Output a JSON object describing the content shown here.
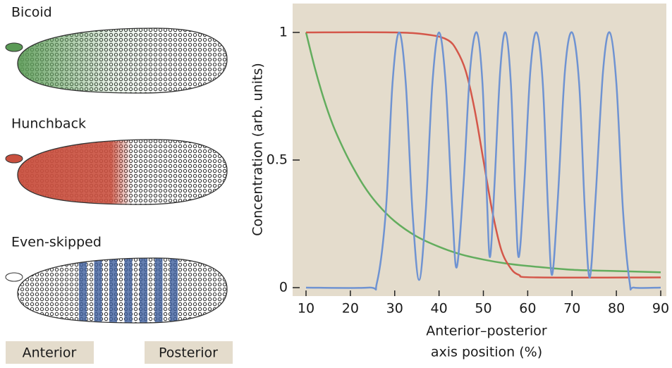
{
  "chart_data": {
    "type": "line",
    "ylabel": "Concentration (arb. units)",
    "xlabel": [
      "Anterior–posterior",
      "axis position (%)"
    ],
    "xlim": [
      10,
      90
    ],
    "ylim": [
      0,
      1
    ],
    "xticks": [
      10,
      20,
      30,
      40,
      50,
      60,
      70,
      80,
      90
    ],
    "yticks": [
      0,
      0.5,
      1
    ],
    "background": "#e4dccc",
    "series": [
      {
        "color": "#63ad5e",
        "x": [
          10,
          12,
          14,
          16,
          18,
          20,
          23,
          26,
          30,
          35,
          40,
          45,
          50,
          55,
          60,
          70,
          80,
          90
        ],
        "values": [
          1,
          0.86,
          0.74,
          0.64,
          0.56,
          0.49,
          0.4,
          0.33,
          0.26,
          0.2,
          0.16,
          0.13,
          0.11,
          0.095,
          0.085,
          0.07,
          0.065,
          0.06
        ]
      },
      {
        "color": "#d4574a",
        "x": [
          10,
          30,
          38,
          42,
          44,
          46,
          48,
          50,
          52,
          54,
          56,
          58,
          62,
          90
        ],
        "values": [
          1,
          1,
          0.99,
          0.97,
          0.93,
          0.85,
          0.7,
          0.5,
          0.3,
          0.15,
          0.08,
          0.05,
          0.04,
          0.04
        ]
      },
      {
        "color": "#6f93d2",
        "x": [
          10,
          24,
          26,
          28,
          29.5,
          31,
          32.5,
          34,
          35.5,
          37,
          38.5,
          40,
          41.5,
          43,
          44,
          45.5,
          47,
          48.5,
          49.8,
          50.8,
          51.5,
          52.5,
          53.8,
          55,
          56.2,
          57.2,
          58,
          59.2,
          60.6,
          62,
          63.4,
          64.6,
          65.5,
          66.8,
          68.4,
          70,
          71.6,
          72.9,
          74,
          75.3,
          77,
          78.5,
          80,
          81.5,
          83,
          84,
          90
        ],
        "values": [
          0,
          0,
          0.02,
          0.3,
          0.8,
          1,
          0.8,
          0.3,
          0.03,
          0.3,
          0.8,
          1,
          0.8,
          0.3,
          0.08,
          0.4,
          0.85,
          1,
          0.8,
          0.35,
          0.12,
          0.4,
          0.85,
          1,
          0.8,
          0.35,
          0.12,
          0.4,
          0.85,
          1,
          0.8,
          0.3,
          0.05,
          0.35,
          0.85,
          1,
          0.8,
          0.3,
          0.04,
          0.35,
          0.85,
          1,
          0.8,
          0.3,
          0.02,
          0,
          0
        ]
      }
    ]
  },
  "embryos": [
    {
      "label": "Bicoid"
    },
    {
      "label": "Hunchback"
    },
    {
      "label": "Even-skipped"
    }
  ],
  "axis_ends": {
    "anterior": "Anterior",
    "posterior": "Posterior"
  }
}
